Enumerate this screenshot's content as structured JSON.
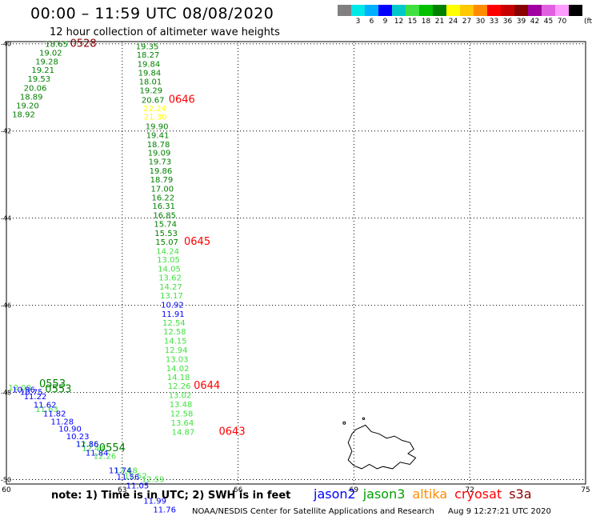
{
  "header": {
    "title": "00:00 – 11:59 UTC 08/08/2020",
    "subtitle": "12 hour collection of altimeter wave heights"
  },
  "colorbar": {
    "unit": "(ft)",
    "cells": [
      {
        "color": "#808080",
        "label": ""
      },
      {
        "color": "#00e8e8",
        "label": "3"
      },
      {
        "color": "#00b0ff",
        "label": "6"
      },
      {
        "color": "#0000ff",
        "label": "9"
      },
      {
        "color": "#00c8c8",
        "label": "12"
      },
      {
        "color": "#40e040",
        "label": "15"
      },
      {
        "color": "#00c000",
        "label": "18"
      },
      {
        "color": "#008000",
        "label": "21"
      },
      {
        "color": "#ffff00",
        "label": "24"
      },
      {
        "color": "#ffc800",
        "label": "27"
      },
      {
        "color": "#ff8c00",
        "label": "30"
      },
      {
        "color": "#ff0000",
        "label": "33"
      },
      {
        "color": "#c80000",
        "label": "36"
      },
      {
        "color": "#880000",
        "label": "39"
      },
      {
        "color": "#a000a0",
        "label": "42"
      },
      {
        "color": "#e060e0",
        "label": "45"
      },
      {
        "color": "#ff9cff",
        "label": "70"
      },
      {
        "color": "#000000",
        "label": ""
      }
    ]
  },
  "map": {
    "lon_range": [
      60,
      75
    ],
    "lat_range": [
      -50.1,
      -39.95
    ],
    "x_ticks": [
      {
        "value": 60,
        "label": "60"
      },
      {
        "value": 63,
        "label": "63"
      },
      {
        "value": 66,
        "label": "66"
      },
      {
        "value": 69,
        "label": "69"
      },
      {
        "value": 72,
        "label": "72"
      },
      {
        "value": 75,
        "label": "75"
      }
    ],
    "y_ticks": [
      {
        "value": -40,
        "label": "-40"
      },
      {
        "value": -42,
        "label": "-42"
      },
      {
        "value": -44,
        "label": "-44"
      },
      {
        "value": -46,
        "label": "-46"
      },
      {
        "value": -48,
        "label": "-48"
      },
      {
        "value": -50,
        "label": "-50"
      }
    ],
    "grid": true,
    "colors": {
      "dark_green": "#008000",
      "light_green": "#40e040",
      "blue": "#0000ff",
      "yellow": "#ffff00",
      "red": "#ff0000",
      "dark_red": "#880000"
    },
    "tracks": [
      {
        "color": "dark_green",
        "points": [
          [
            61.0,
            -40.07,
            "18.65"
          ],
          [
            60.85,
            -40.27,
            "19.02"
          ],
          [
            60.75,
            -40.47,
            "19.28"
          ],
          [
            60.65,
            -40.67,
            "19.21"
          ],
          [
            60.55,
            -40.87,
            "19.53"
          ],
          [
            60.45,
            -41.08,
            "20.06"
          ],
          [
            60.35,
            -41.28,
            "18.89"
          ],
          [
            60.25,
            -41.48,
            "19.20"
          ],
          [
            60.15,
            -41.68,
            "18.92"
          ]
        ]
      },
      {
        "color": "dark_green",
        "points": [
          [
            63.35,
            -40.12,
            "19.35"
          ],
          [
            63.37,
            -40.32,
            "18.27"
          ],
          [
            63.39,
            -40.53,
            "19.84"
          ],
          [
            63.41,
            -40.73,
            "19.84"
          ],
          [
            63.43,
            -40.93,
            "18.01"
          ],
          [
            63.45,
            -41.13,
            "19.29"
          ],
          [
            63.5,
            -41.35,
            "20.67"
          ]
        ]
      },
      {
        "color": "yellow",
        "points": [
          [
            63.55,
            -41.55,
            "22.24"
          ],
          [
            63.56,
            -41.74,
            "21.30"
          ]
        ]
      },
      {
        "color": "dark_green",
        "points": [
          [
            63.6,
            -41.96,
            "19.90"
          ],
          [
            63.62,
            -42.16,
            "19.41"
          ],
          [
            63.64,
            -42.37,
            "18.78"
          ],
          [
            63.66,
            -42.57,
            "19.09"
          ],
          [
            63.68,
            -42.77,
            "19.73"
          ],
          [
            63.7,
            -42.98,
            "19.86"
          ],
          [
            63.72,
            -43.18,
            "18.79"
          ],
          [
            63.74,
            -43.39,
            "17.00"
          ],
          [
            63.76,
            -43.59,
            "16.22"
          ],
          [
            63.78,
            -43.79,
            "16.31"
          ],
          [
            63.8,
            -44.0,
            "16.85"
          ],
          [
            63.82,
            -44.2,
            "15.74"
          ],
          [
            63.84,
            -44.41,
            "15.53"
          ],
          [
            63.86,
            -44.61,
            "15.07"
          ]
        ]
      },
      {
        "color": "light_green",
        "points": [
          [
            63.88,
            -44.82,
            "14.24"
          ],
          [
            63.9,
            -45.02,
            "13.05"
          ],
          [
            63.92,
            -45.23,
            "14.05"
          ],
          [
            63.94,
            -45.43,
            "13.62"
          ],
          [
            63.96,
            -45.64,
            "14.27"
          ],
          [
            63.98,
            -45.84,
            "13.17"
          ]
        ]
      },
      {
        "color": "blue",
        "points": [
          [
            64.0,
            -46.05,
            "10.92"
          ],
          [
            64.02,
            -46.26,
            "11.91"
          ]
        ]
      },
      {
        "color": "light_green",
        "points": [
          [
            64.04,
            -46.47,
            "12.54"
          ],
          [
            64.06,
            -46.67,
            "12.58"
          ],
          [
            64.08,
            -46.88,
            "14.15"
          ],
          [
            64.1,
            -47.09,
            "12.94"
          ],
          [
            64.12,
            -47.3,
            "13.03"
          ],
          [
            64.14,
            -47.51,
            "14.02"
          ],
          [
            64.16,
            -47.71,
            "14.18"
          ],
          [
            64.18,
            -47.92,
            "12.26"
          ],
          [
            64.2,
            -48.13,
            "13.02"
          ],
          [
            64.22,
            -48.34,
            "13.48"
          ],
          [
            64.24,
            -48.55,
            "12.58"
          ],
          [
            64.26,
            -48.76,
            "13.64"
          ],
          [
            64.28,
            -48.97,
            "14.87"
          ]
        ]
      },
      {
        "color": "light_green",
        "points": [
          [
            60.05,
            -47.95,
            "12.08"
          ],
          [
            60.75,
            -48.45,
            "11.63"
          ],
          [
            61.8,
            -49.25,
            "12.15"
          ],
          [
            61.95,
            -49.35,
            "12.44"
          ],
          [
            62.25,
            -49.52,
            "12.26"
          ],
          [
            62.8,
            -49.85,
            "12.68"
          ],
          [
            63.05,
            -49.98,
            "12.52"
          ],
          [
            63.5,
            -50.05,
            "12.59"
          ]
        ]
      },
      {
        "color": "blue",
        "points": [
          [
            60.15,
            -48.0,
            "10.96"
          ],
          [
            60.35,
            -48.05,
            "10.75"
          ],
          [
            60.45,
            -48.15,
            "11.22"
          ],
          [
            60.7,
            -48.35,
            "11.62"
          ],
          [
            60.95,
            -48.55,
            "11.82"
          ],
          [
            61.15,
            -48.73,
            "11.28"
          ],
          [
            61.35,
            -48.9,
            "10.90"
          ],
          [
            61.55,
            -49.07,
            "10.23"
          ],
          [
            61.8,
            -49.25,
            "11.86"
          ],
          [
            62.05,
            -49.45,
            "11.84"
          ],
          [
            62.65,
            -49.85,
            "11.74"
          ],
          [
            62.85,
            -50.0,
            "11.56"
          ],
          [
            63.1,
            -50.2,
            "11.05"
          ],
          [
            63.55,
            -50.55,
            "11.99"
          ],
          [
            63.8,
            -50.75,
            "11.76"
          ]
        ]
      }
    ],
    "time_labels": [
      {
        "text": "0528",
        "lon": 61.65,
        "lat": -40.07,
        "color": "dark_red"
      },
      {
        "text": "0646",
        "lon": 64.2,
        "lat": -41.35,
        "color": "red"
      },
      {
        "text": "0645",
        "lon": 64.6,
        "lat": -44.61,
        "color": "red"
      },
      {
        "text": "0553",
        "lon": 60.85,
        "lat": -47.88,
        "color": "dark_green"
      },
      {
        "text": "0553",
        "lon": 61.0,
        "lat": -48.0,
        "color": "dark_green"
      },
      {
        "text": "0554",
        "lon": 62.4,
        "lat": -49.35,
        "color": "dark_green"
      },
      {
        "text": "0644",
        "lon": 64.85,
        "lat": -47.92,
        "color": "red"
      },
      {
        "text": "0643",
        "lon": 65.5,
        "lat": -48.97,
        "color": "red"
      }
    ]
  },
  "note": "note:  1) Time is in UTC;  2) SWH is in feet",
  "satellites": [
    {
      "name": "jason2",
      "color": "#0000ff"
    },
    {
      "name": "jason3",
      "color": "#00a000"
    },
    {
      "name": "altika",
      "color": "#ff8c00"
    },
    {
      "name": "cryosat",
      "color": "#ff0000"
    },
    {
      "name": "s3a",
      "color": "#880000"
    }
  ],
  "footer": {
    "credit": "NOAA/NESDIS Center for Satellite Applications and Research",
    "timestamp": "Aug  9 12:27:21 UTC 2020"
  }
}
